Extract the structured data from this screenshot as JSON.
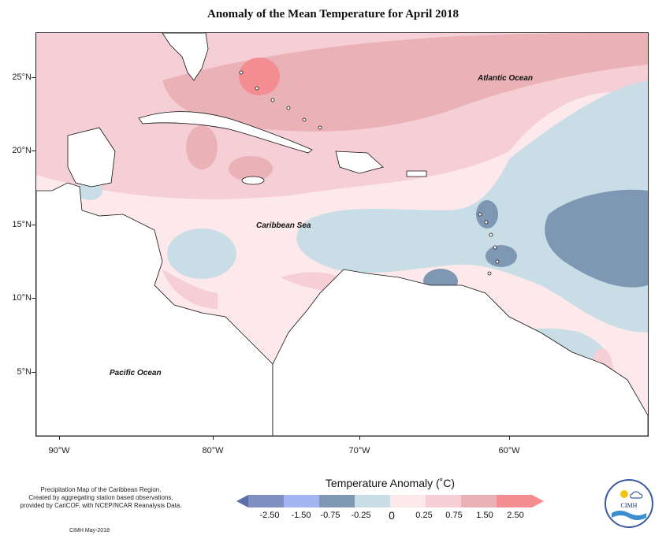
{
  "title": "Anomaly of the Mean Temperature for April 2018",
  "map": {
    "lat_ticks": [
      "25°N",
      "20°N",
      "15°N",
      "10°N",
      "5°N"
    ],
    "lon_ticks": [
      "90°W",
      "80°W",
      "70°W",
      "60°W"
    ],
    "labels": {
      "atlantic": "Atlantic Ocean",
      "caribbean": "Caribbean Sea",
      "pacific": "Pacific Ocean"
    }
  },
  "legend": {
    "title": "Temperature Anomaly (˚C)",
    "ticks": [
      "-2.50",
      "-1.50",
      "-0.75",
      "-0.25",
      "0",
      "0.25",
      "0.75",
      "1.50",
      "2.50"
    ],
    "colors": [
      "#5b6fa8",
      "#7f8fc2",
      "#a3b4f2",
      "#7e98b4",
      "#c9dde6",
      "#fde8eb",
      "#f6cfd6",
      "#eab2b7",
      "#f48d92",
      "#f68c90"
    ]
  },
  "credit": {
    "lines": [
      "Precipitation Map of the Caribbean Region.",
      "Created by aggregating station based observations,",
      "provided by CariCOF, with NCEP/NCAR Reanalysis Data."
    ],
    "date": "CIMH May-2018"
  },
  "logo": {
    "text": "CIMH"
  }
}
